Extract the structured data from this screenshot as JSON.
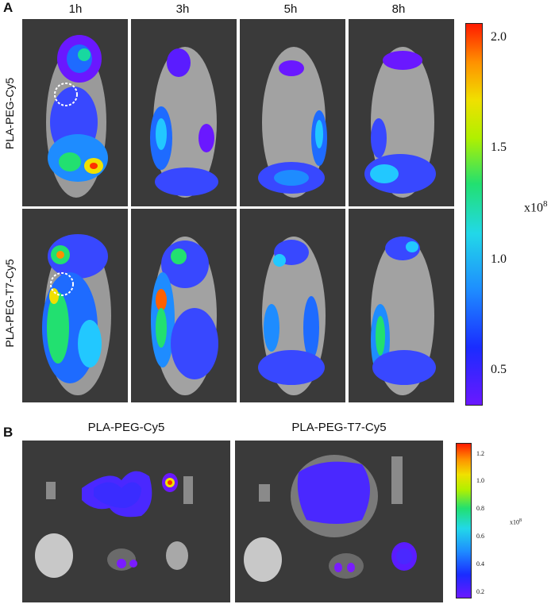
{
  "panel_a": {
    "letter": "A",
    "timepoints": [
      "1h",
      "3h",
      "5h",
      "8h"
    ],
    "rows": [
      "PLA-PEG-Cy5",
      "PLA-PEG-T7-Cy5"
    ],
    "colorbar": {
      "ticks": [
        "2.0",
        "1.5",
        "1.0",
        "0.5"
      ],
      "multiplier": "x10",
      "exponent": "8"
    }
  },
  "panel_b": {
    "letter": "B",
    "groups": [
      "PLA-PEG-Cy5",
      "PLA-PEG-T7-Cy5"
    ],
    "colorbar": {
      "ticks": [
        "1.2",
        "1.0",
        "0.8",
        "0.6",
        "0.4",
        "0.2"
      ],
      "multiplier": "x10",
      "exponent": "8"
    }
  },
  "colors": {
    "background_dark": "#3a3a3a",
    "mouse_gray": "#9a9a9a",
    "signal_low": "#6a18ff",
    "signal_high": "#ff1a00"
  }
}
